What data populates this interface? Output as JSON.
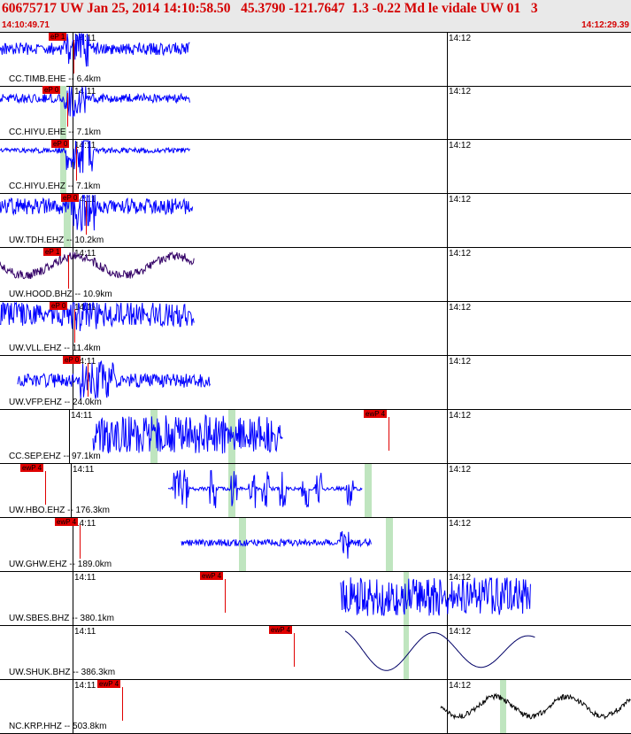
{
  "header": {
    "title": "60675717 UW Jan 25, 2014 14:10:58.50   45.3790 -121.7647  1.3 -0.22 Md le vidale UW 01   3",
    "start_time": "14:10:49.71",
    "end_time": "14:12:29.39"
  },
  "colors": {
    "trace": "#0000ff",
    "pick": "#e00000",
    "header_text": "#d40000",
    "green_band": "#bfe5bf"
  },
  "time_labels": {
    "minute1": "14:11",
    "minute2": "14:12"
  },
  "traces": [
    {
      "station": "CC.TIMB.EHE -- 6.4km",
      "pick": "eP 1",
      "color": "#0000ff"
    },
    {
      "station": "CC.HIYU.EHE -- 7.1km",
      "pick": "eP 0",
      "color": "#0000ff"
    },
    {
      "station": "CC.HIYU.EHZ -- 7.1km",
      "pick": "eP 0",
      "color": "#0000ff"
    },
    {
      "station": "UW.TDH.EHZ -- 10.2km",
      "pick": "eP 0",
      "color": "#0000ff"
    },
    {
      "station": "UW.HOOD.BHZ -- 10.9km",
      "pick": "eP 1",
      "color": "#330066"
    },
    {
      "station": "UW.VLL.EHZ -- 11.4km",
      "pick": "eP 0",
      "color": "#0000ff"
    },
    {
      "station": "UW.VFP.EHZ -- 24.0km",
      "pick": "eP 0",
      "color": "#0000ff"
    },
    {
      "station": "CC.SEP.EHZ -- 97.1km",
      "pick": "ewP 4",
      "color": "#0000ff"
    },
    {
      "station": "UW.HBO.EHZ -- 176.3km",
      "pick": "ewP 4",
      "color": "#0000ff"
    },
    {
      "station": "UW.GHW.EHZ -- 189.0km",
      "pick": "ewP 4",
      "color": "#0000ff"
    },
    {
      "station": "UW.SBES.BHZ -- 380.1km",
      "pick": "ewP 4",
      "color": "#0000ff"
    },
    {
      "station": "UW.SHUK.BHZ -- 386.3km",
      "pick": "ewP 4",
      "color": "#000066"
    },
    {
      "station": "NC.KRP.HHZ -- 503.8km",
      "pick": "ewP 4",
      "color": "#000000"
    }
  ]
}
